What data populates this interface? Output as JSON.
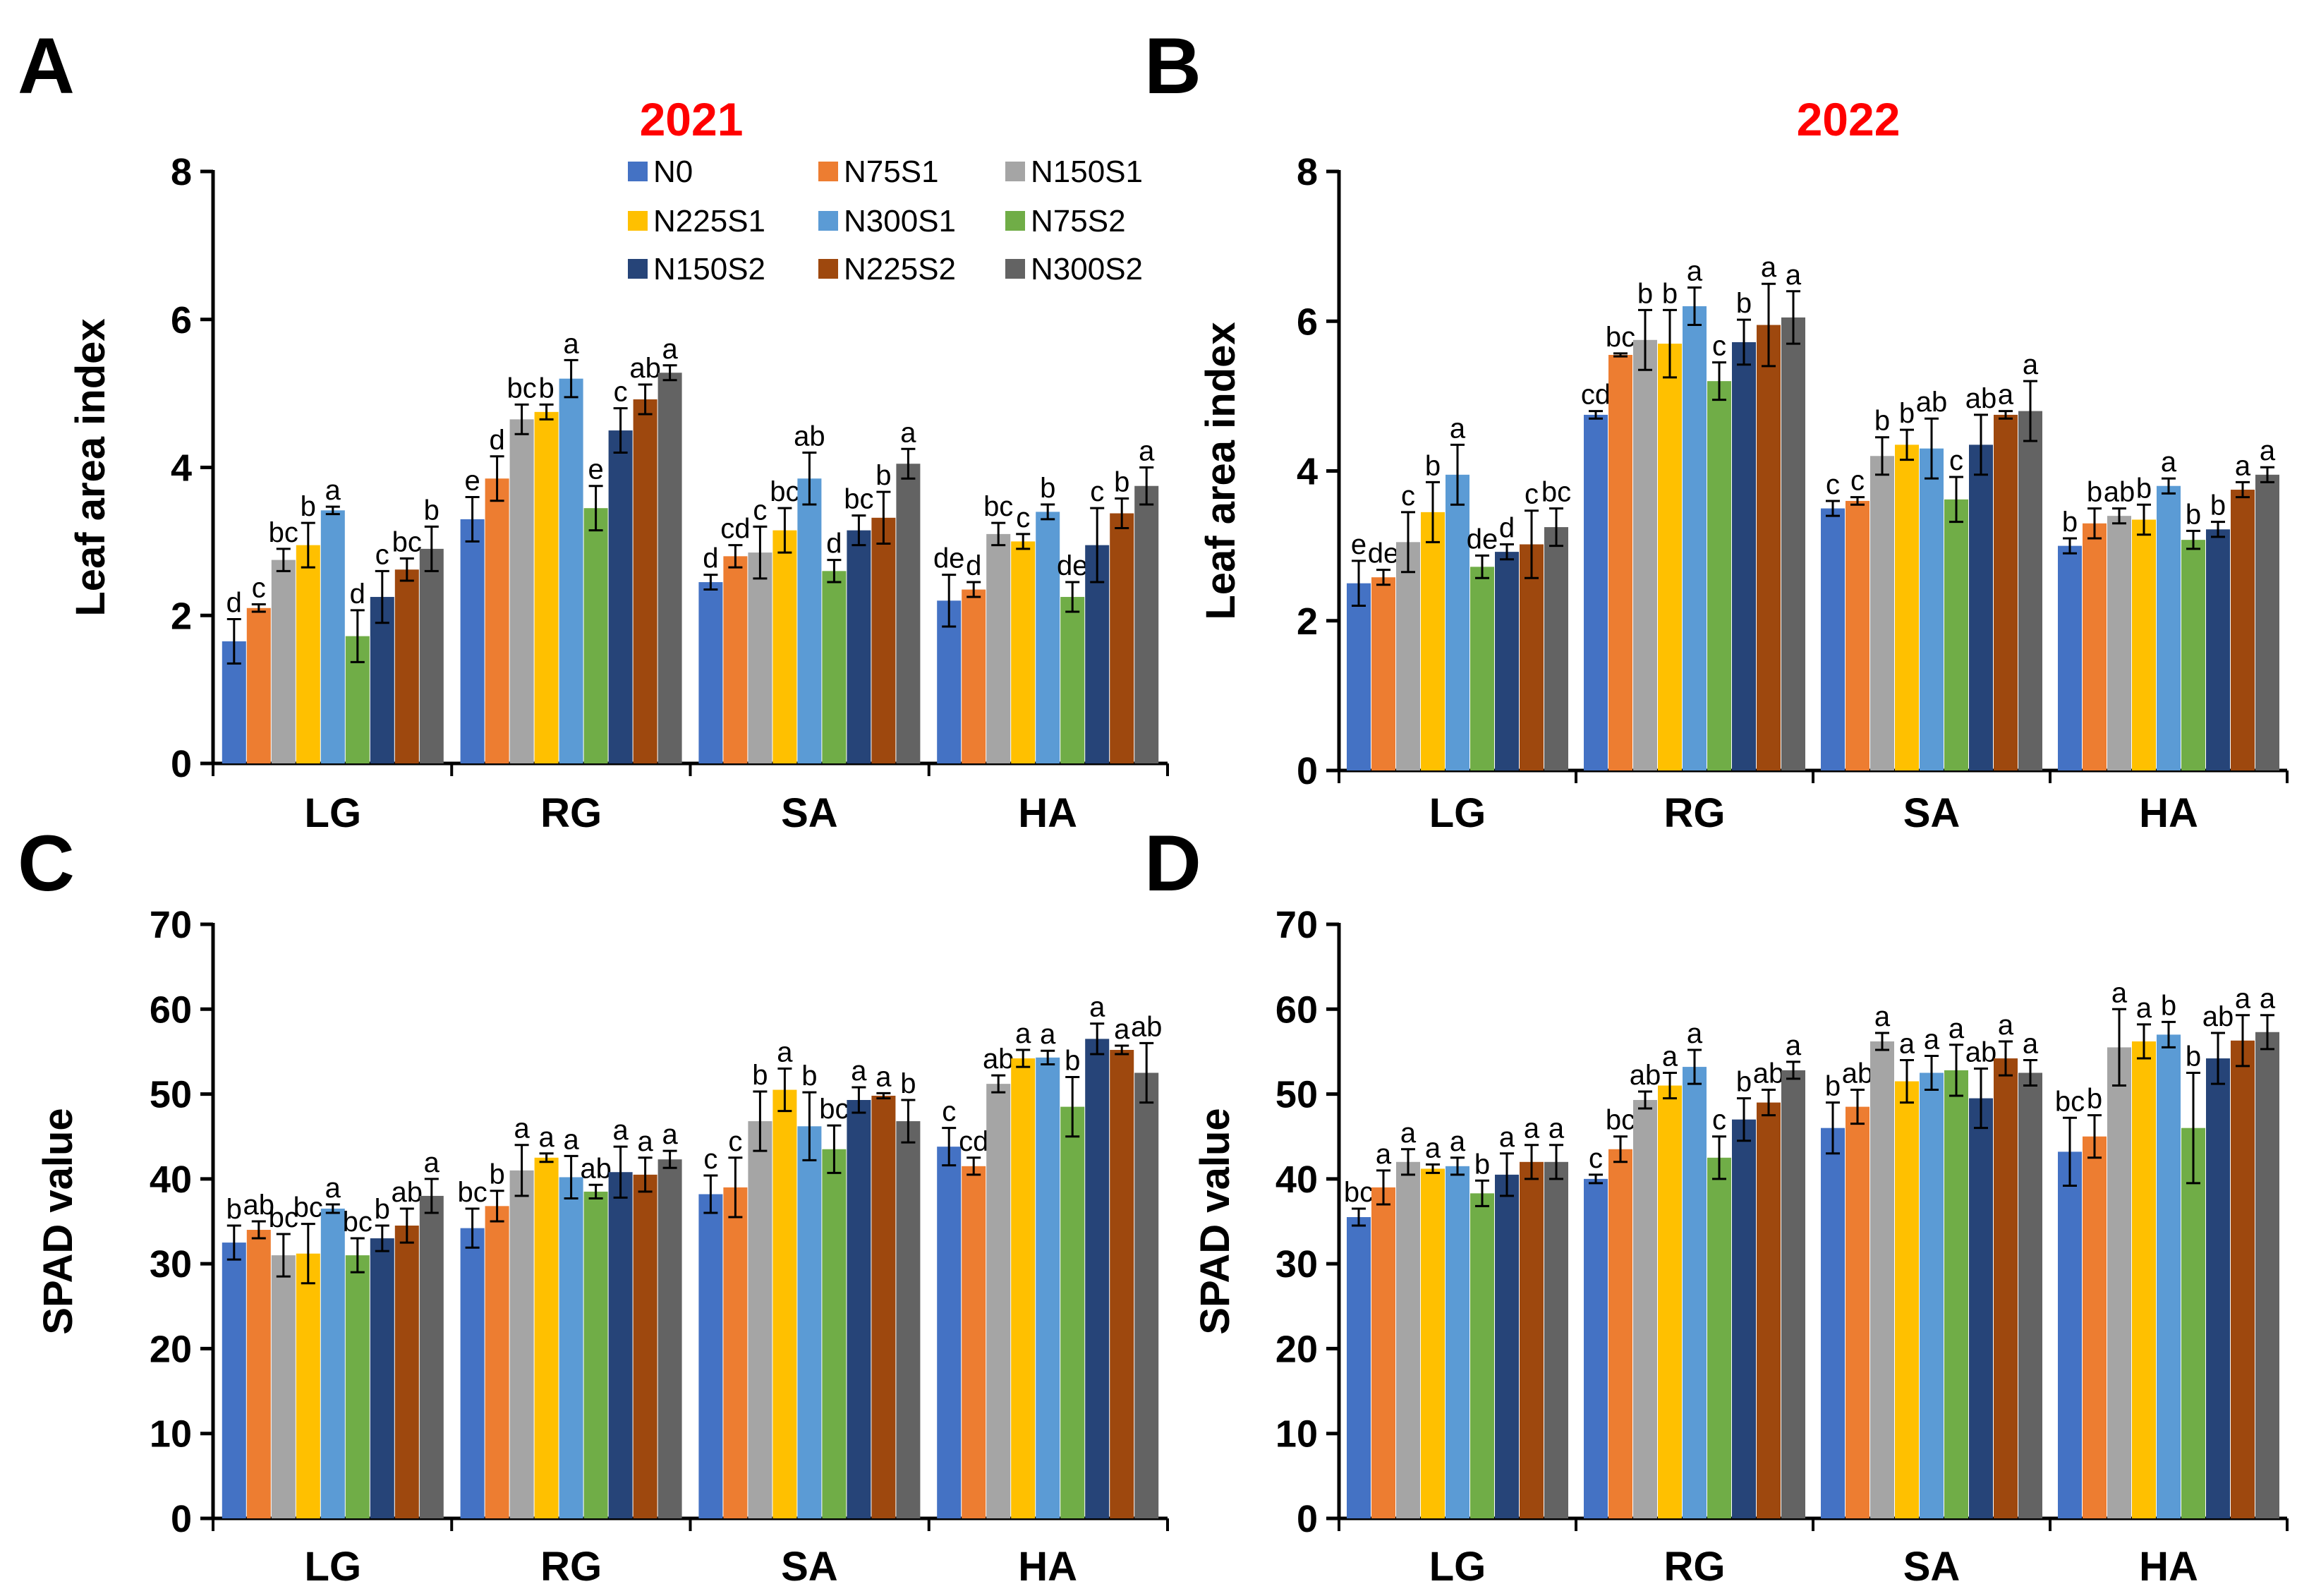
{
  "series_colors": [
    "#4472C4",
    "#ED7D31",
    "#A5A5A5",
    "#FFC000",
    "#5B9BD5",
    "#70AD47",
    "#264478",
    "#9E480E",
    "#636363"
  ],
  "legend_labels": [
    "N0",
    "N75S1",
    "N150S1",
    "N225S1",
    "N300S1",
    "N75S2",
    "N150S2",
    "N225S2",
    "N300S2"
  ],
  "chart_data": [
    {
      "panel": "A",
      "type": "bar",
      "title": "2021",
      "title_color": "#FF0000",
      "ylabel": "Leaf area index",
      "xlabel": "",
      "ylim": [
        0,
        8
      ],
      "yticks": [
        "0",
        "2",
        "4",
        "6",
        "8"
      ],
      "categories": [
        "LG",
        "RG",
        "SA",
        "HA"
      ],
      "legend": "top-inside",
      "series": [
        {
          "name": "N0",
          "values": [
            1.65,
            3.3,
            2.45,
            2.2
          ],
          "errors": [
            0.3,
            0.3,
            0.1,
            0.35
          ],
          "letters": [
            "d",
            "e",
            "d",
            "de"
          ]
        },
        {
          "name": "N75S1",
          "values": [
            2.1,
            3.85,
            2.8,
            2.35
          ],
          "errors": [
            0.05,
            0.3,
            0.15,
            0.1
          ],
          "letters": [
            "c",
            "d",
            "cd",
            "d"
          ]
        },
        {
          "name": "N150S1",
          "values": [
            2.75,
            4.65,
            2.85,
            3.1
          ],
          "errors": [
            0.15,
            0.2,
            0.35,
            0.15
          ],
          "letters": [
            "bc",
            "bc",
            "c",
            "bc"
          ]
        },
        {
          "name": "N225S1",
          "values": [
            2.95,
            4.75,
            3.15,
            3.0
          ],
          "errors": [
            0.3,
            0.1,
            0.3,
            0.1
          ],
          "letters": [
            "b",
            "b",
            "bc",
            "c"
          ]
        },
        {
          "name": "N300S1",
          "values": [
            3.42,
            5.2,
            3.85,
            3.4
          ],
          "errors": [
            0.05,
            0.25,
            0.35,
            0.1
          ],
          "letters": [
            "a",
            "a",
            "ab",
            "b"
          ]
        },
        {
          "name": "N75S2",
          "values": [
            1.72,
            3.45,
            2.6,
            2.25
          ],
          "errors": [
            0.35,
            0.3,
            0.15,
            0.2
          ],
          "letters": [
            "d",
            "e",
            "d",
            "de"
          ]
        },
        {
          "name": "N150S2",
          "values": [
            2.25,
            4.5,
            3.15,
            2.95
          ],
          "errors": [
            0.35,
            0.3,
            0.2,
            0.5
          ],
          "letters": [
            "c",
            "c",
            "bc",
            "c"
          ]
        },
        {
          "name": "N225S2",
          "values": [
            2.62,
            4.92,
            3.32,
            3.38
          ],
          "errors": [
            0.15,
            0.2,
            0.35,
            0.2
          ],
          "letters": [
            "bc",
            "ab",
            "b",
            "b"
          ]
        },
        {
          "name": "N300S2",
          "values": [
            2.9,
            5.28,
            4.05,
            3.75
          ],
          "errors": [
            0.3,
            0.1,
            0.2,
            0.25
          ],
          "letters": [
            "b",
            "a",
            "a",
            "a"
          ]
        }
      ]
    },
    {
      "panel": "B",
      "type": "bar",
      "title": "2022",
      "title_color": "#FF0000",
      "ylabel": "Leaf area index",
      "xlabel": "",
      "ylim": [
        0,
        8
      ],
      "yticks": [
        "0",
        "2",
        "4",
        "6",
        "8"
      ],
      "categories": [
        "LG",
        "RG",
        "SA",
        "HA"
      ],
      "series": [
        {
          "name": "N0",
          "values": [
            2.5,
            4.75,
            3.5,
            3.0
          ],
          "errors": [
            0.3,
            0.05,
            0.1,
            0.1
          ],
          "letters": [
            "e",
            "cd",
            "c",
            "b"
          ]
        },
        {
          "name": "N75S1",
          "values": [
            2.58,
            5.55,
            3.6,
            3.3
          ],
          "errors": [
            0.1,
            0.02,
            0.05,
            0.2
          ],
          "letters": [
            "de",
            "bc",
            "c",
            "b"
          ]
        },
        {
          "name": "N150S1",
          "values": [
            3.05,
            5.75,
            4.2,
            3.4
          ],
          "errors": [
            0.4,
            0.4,
            0.25,
            0.1
          ],
          "letters": [
            "c",
            "b",
            "b",
            "ab"
          ]
        },
        {
          "name": "N225S1",
          "values": [
            3.45,
            5.7,
            4.35,
            3.35
          ],
          "errors": [
            0.4,
            0.45,
            0.2,
            0.2
          ],
          "letters": [
            "b",
            "b",
            "b",
            "b"
          ]
        },
        {
          "name": "N300S1",
          "values": [
            3.95,
            6.2,
            4.3,
            3.8
          ],
          "errors": [
            0.4,
            0.25,
            0.4,
            0.1
          ],
          "letters": [
            "a",
            "a",
            "ab",
            "a"
          ]
        },
        {
          "name": "N75S2",
          "values": [
            2.72,
            5.2,
            3.62,
            3.08
          ],
          "errors": [
            0.15,
            0.25,
            0.3,
            0.12
          ],
          "letters": [
            "de",
            "c",
            "c",
            "b"
          ]
        },
        {
          "name": "N150S2",
          "values": [
            2.92,
            5.72,
            4.35,
            3.22
          ],
          "errors": [
            0.1,
            0.3,
            0.4,
            0.1
          ],
          "letters": [
            "d",
            "b",
            "ab",
            "b"
          ]
        },
        {
          "name": "N225S2",
          "values": [
            3.02,
            5.95,
            4.75,
            3.75
          ],
          "errors": [
            0.45,
            0.55,
            0.05,
            0.1
          ],
          "letters": [
            "c",
            "a",
            "a",
            "a"
          ]
        },
        {
          "name": "N300S2",
          "values": [
            3.25,
            6.05,
            4.8,
            3.95
          ],
          "errors": [
            0.25,
            0.35,
            0.4,
            0.1
          ],
          "letters": [
            "bc",
            "a",
            "a",
            "a"
          ]
        }
      ]
    },
    {
      "panel": "C",
      "type": "bar",
      "title": "",
      "ylabel": "SPAD value",
      "xlabel": "",
      "ylim": [
        0,
        70
      ],
      "yticks": [
        "0",
        "10",
        "20",
        "30",
        "40",
        "50",
        "60",
        "70"
      ],
      "categories": [
        "LG",
        "RG",
        "SA",
        "HA"
      ],
      "series": [
        {
          "name": "N0",
          "values": [
            32.5,
            34.2,
            38.2,
            43.8
          ],
          "errors": [
            2.0,
            2.3,
            2.2,
            2.2
          ],
          "letters": [
            "b",
            "bc",
            "c",
            "c"
          ]
        },
        {
          "name": "N75S1",
          "values": [
            34.0,
            36.8,
            39.0,
            41.5
          ],
          "errors": [
            1.0,
            1.8,
            3.5,
            1.0
          ],
          "letters": [
            "ab",
            "b",
            "c",
            "cd"
          ]
        },
        {
          "name": "N150S1",
          "values": [
            31.0,
            41.0,
            46.8,
            51.2
          ],
          "errors": [
            2.5,
            3.0,
            3.5,
            1.0
          ],
          "letters": [
            "bc",
            "a",
            "b",
            "ab"
          ]
        },
        {
          "name": "N225S1",
          "values": [
            31.2,
            42.5,
            50.5,
            54.2
          ],
          "errors": [
            3.5,
            0.5,
            2.5,
            1.0
          ],
          "letters": [
            "bc",
            "a",
            "a",
            "a"
          ]
        },
        {
          "name": "N300S1",
          "values": [
            36.5,
            40.2,
            46.2,
            54.3
          ],
          "errors": [
            0.5,
            2.5,
            4.0,
            0.8
          ],
          "letters": [
            "a",
            "a",
            "b",
            "a"
          ]
        },
        {
          "name": "N75S2",
          "values": [
            31.0,
            38.5,
            43.5,
            48.5
          ],
          "errors": [
            2.0,
            0.8,
            2.8,
            3.5
          ],
          "letters": [
            "bc",
            "ab",
            "bc",
            "b"
          ]
        },
        {
          "name": "N150S2",
          "values": [
            33.0,
            40.8,
            49.3,
            56.5
          ],
          "errors": [
            1.5,
            3.0,
            1.5,
            1.8
          ],
          "letters": [
            "b",
            "a",
            "a",
            "a"
          ]
        },
        {
          "name": "N225S2",
          "values": [
            34.5,
            40.5,
            49.8,
            55.2
          ],
          "errors": [
            2.0,
            2.0,
            0.3,
            0.5
          ],
          "letters": [
            "ab",
            "a",
            "a",
            "a"
          ]
        },
        {
          "name": "N300S2",
          "values": [
            38.0,
            42.3,
            46.8,
            52.5
          ],
          "errors": [
            2.0,
            1.0,
            2.5,
            3.5
          ],
          "letters": [
            "a",
            "a",
            "b",
            "ab"
          ]
        }
      ]
    },
    {
      "panel": "D",
      "type": "bar",
      "title": "",
      "ylabel": "SPAD value",
      "xlabel": "",
      "ylim": [
        0,
        70
      ],
      "yticks": [
        "0",
        "10",
        "20",
        "30",
        "40",
        "50",
        "60",
        "70"
      ],
      "categories": [
        "LG",
        "RG",
        "SA",
        "HA"
      ],
      "series": [
        {
          "name": "N0",
          "values": [
            35.5,
            40.0,
            46.0,
            43.2
          ],
          "errors": [
            1.0,
            0.5,
            3.0,
            4.0
          ],
          "letters": [
            "bc",
            "c",
            "b",
            "bc"
          ]
        },
        {
          "name": "N75S1",
          "values": [
            39.0,
            43.5,
            48.5,
            45.0
          ],
          "errors": [
            2.0,
            1.5,
            2.0,
            2.5
          ],
          "letters": [
            "a",
            "bc",
            "ab",
            "b"
          ]
        },
        {
          "name": "N150S1",
          "values": [
            42.0,
            49.3,
            56.2,
            55.5
          ],
          "errors": [
            1.5,
            1.0,
            1.0,
            4.5
          ],
          "letters": [
            "a",
            "ab",
            "a",
            "a"
          ]
        },
        {
          "name": "N225S1",
          "values": [
            41.2,
            51.0,
            51.5,
            56.2
          ],
          "errors": [
            0.5,
            1.5,
            2.5,
            2.0
          ],
          "letters": [
            "a",
            "a",
            "a",
            "a"
          ]
        },
        {
          "name": "N300S1",
          "values": [
            41.5,
            53.2,
            52.5,
            57.0
          ],
          "errors": [
            1.0,
            2.0,
            2.0,
            1.5
          ],
          "letters": [
            "a",
            "a",
            "a",
            "b"
          ]
        },
        {
          "name": "N75S2",
          "values": [
            38.3,
            42.5,
            52.8,
            46.0
          ],
          "errors": [
            1.5,
            2.5,
            3.0,
            6.5
          ],
          "letters": [
            "b",
            "c",
            "a",
            "b"
          ]
        },
        {
          "name": "N150S2",
          "values": [
            40.5,
            47.0,
            49.5,
            54.2
          ],
          "errors": [
            2.5,
            2.5,
            3.5,
            3.0
          ],
          "letters": [
            "a",
            "b",
            "ab",
            "ab"
          ]
        },
        {
          "name": "N225S2",
          "values": [
            42.0,
            49.0,
            54.2,
            56.3
          ],
          "errors": [
            2.0,
            1.5,
            2.0,
            3.0
          ],
          "letters": [
            "a",
            "ab",
            "a",
            "a"
          ]
        },
        {
          "name": "N300S2",
          "values": [
            42.0,
            52.8,
            52.5,
            57.3
          ],
          "errors": [
            2.0,
            1.0,
            1.5,
            2.0
          ],
          "letters": [
            "a",
            "a",
            "a",
            "a"
          ]
        }
      ]
    }
  ]
}
